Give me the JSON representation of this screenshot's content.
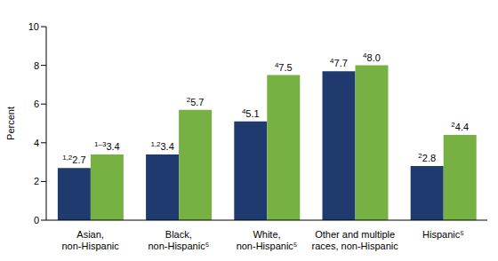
{
  "chart_data": {
    "type": "bar",
    "categories": [
      "Asian, non-Hispanic",
      "Black, non-Hispanic⁵",
      "White, non-Hispanic⁵",
      "Other and multiple races, non-Hispanic",
      "Hispanic⁵"
    ],
    "series": [
      {
        "color": "#1f3a6e",
        "values": [
          2.7,
          3.4,
          5.1,
          7.7,
          2.8
        ],
        "value_labels": [
          "2.7",
          "3.4",
          "5.1",
          "7.7",
          "2.8"
        ],
        "footnotes": [
          "1,2",
          "1,2",
          "4",
          "4",
          "2"
        ]
      },
      {
        "color": "#77b043",
        "values": [
          3.4,
          5.7,
          7.5,
          8.0,
          4.4
        ],
        "value_labels": [
          "3.4",
          "5.7",
          "7.5",
          "8.0",
          "4.4"
        ],
        "footnotes": [
          "1–3",
          "2",
          "4",
          "4",
          "2"
        ]
      }
    ],
    "y_label": "Percent",
    "ylim": [
      0,
      10
    ],
    "yticks": [
      0,
      2,
      4,
      6,
      8,
      10
    ],
    "grid": false,
    "data_labels": true
  }
}
